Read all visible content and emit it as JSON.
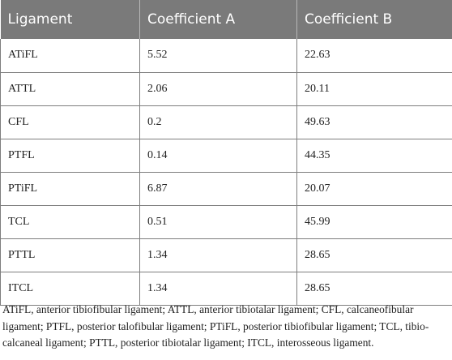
{
  "table": {
    "headers": [
      "Ligament",
      "Coefficient A",
      "Coefficient B"
    ],
    "rows": [
      [
        "ATiFL",
        "5.52",
        "22.63"
      ],
      [
        "ATTL",
        "2.06",
        "20.11"
      ],
      [
        "CFL",
        "0.2",
        "49.63"
      ],
      [
        "PTFL",
        "0.14",
        "44.35"
      ],
      [
        "PTiFL",
        "6.87",
        "20.07"
      ],
      [
        "TCL",
        "0.51",
        "45.99"
      ],
      [
        "PTTL",
        "1.34",
        "28.65"
      ],
      [
        "ITCL",
        "1.34",
        "28.65"
      ]
    ]
  },
  "footnote": "ATiFL, anterior tibiofibular ligament; ATTL, anterior tibiotalar ligament; CFL, calcaneofibular ligament; PTFL, posterior talofibular ligament; PTiFL, posterior tibiofibular ligament; TCL, tibio-calcaneal ligament; PTTL, posterior tibiotalar ligament; ITCL, interosseous ligament.",
  "colors": {
    "header_bg": "#7a7a7a",
    "header_text": "#ffffff",
    "border": "#7e7e7e"
  }
}
